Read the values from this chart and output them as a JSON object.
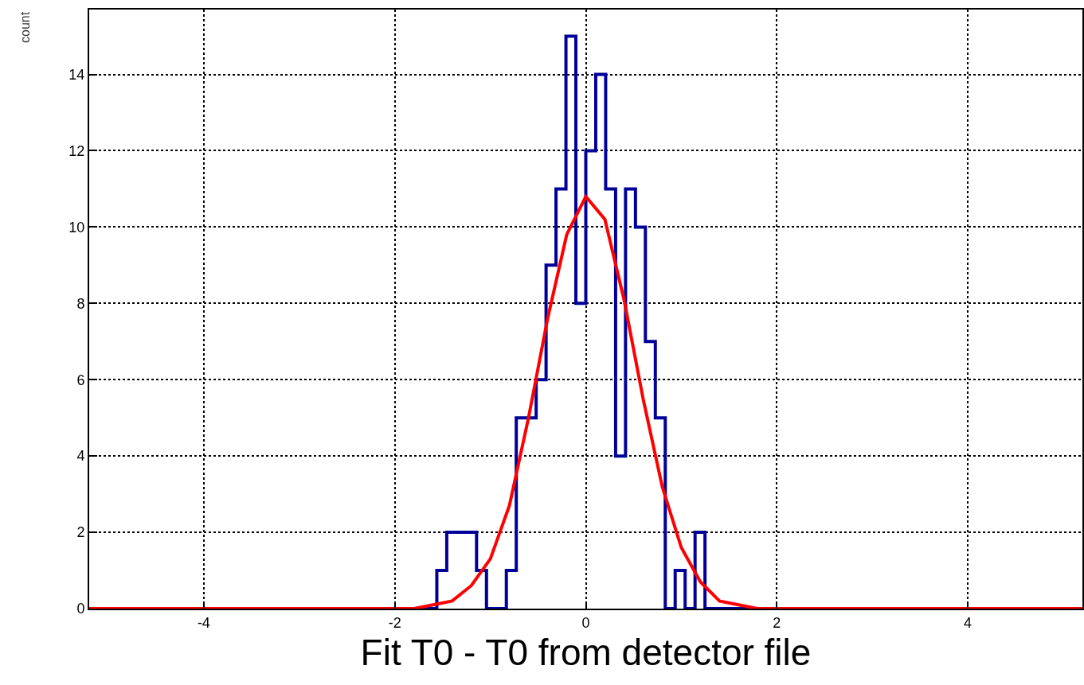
{
  "chart_data": {
    "type": "histogram",
    "xlabel": "Fit T0 - T0 from detector file",
    "ylabel": "count",
    "series": [
      {
        "color": "#000099",
        "bins": [
          -5.2,
          -1.56,
          -1.456,
          -1.352,
          -1.248,
          -1.144,
          -1.04,
          -0.936,
          -0.832,
          -0.728,
          -0.624,
          -0.52,
          -0.416,
          -0.312,
          -0.208,
          -0.104,
          0,
          0.104,
          0.208,
          0.312,
          0.416,
          0.52,
          0.624,
          0.728,
          0.832,
          0.936,
          1.04,
          1.144,
          1.248,
          5.2
        ],
        "values": [
          0,
          1,
          2,
          2,
          2,
          1,
          0,
          0,
          1,
          5,
          5,
          6,
          9,
          11,
          15,
          8,
          12,
          14,
          11,
          4,
          11,
          10,
          7,
          5,
          0,
          1,
          0,
          2,
          0
        ]
      },
      {
        "type": "line",
        "color": "#ff0000",
        "x": [
          -5.2,
          -2,
          -1.8,
          -1.6,
          -1.4,
          -1.2,
          -1,
          -0.8,
          -0.6,
          -0.4,
          -0.2,
          0,
          0.2,
          0.4,
          0.6,
          0.8,
          1,
          1.2,
          1.4,
          1.6,
          1.8,
          2,
          5.2
        ],
        "values": [
          0,
          0,
          0,
          0.1,
          0.2,
          0.6,
          1.3,
          2.7,
          5,
          7.6,
          9.8,
          10.8,
          10.2,
          8.1,
          5.5,
          3.2,
          1.6,
          0.7,
          0.2,
          0.1,
          0,
          0,
          0
        ]
      }
    ],
    "xlim": [
      -5.2,
      5.2
    ],
    "xticks": [
      -4,
      -2,
      0,
      2,
      4
    ],
    "ylim": [
      0,
      15.7
    ],
    "yticks": [
      0,
      2,
      4,
      6,
      8,
      10,
      12,
      14
    ],
    "grid": true,
    "line_style": "solid",
    "marker": "none"
  }
}
